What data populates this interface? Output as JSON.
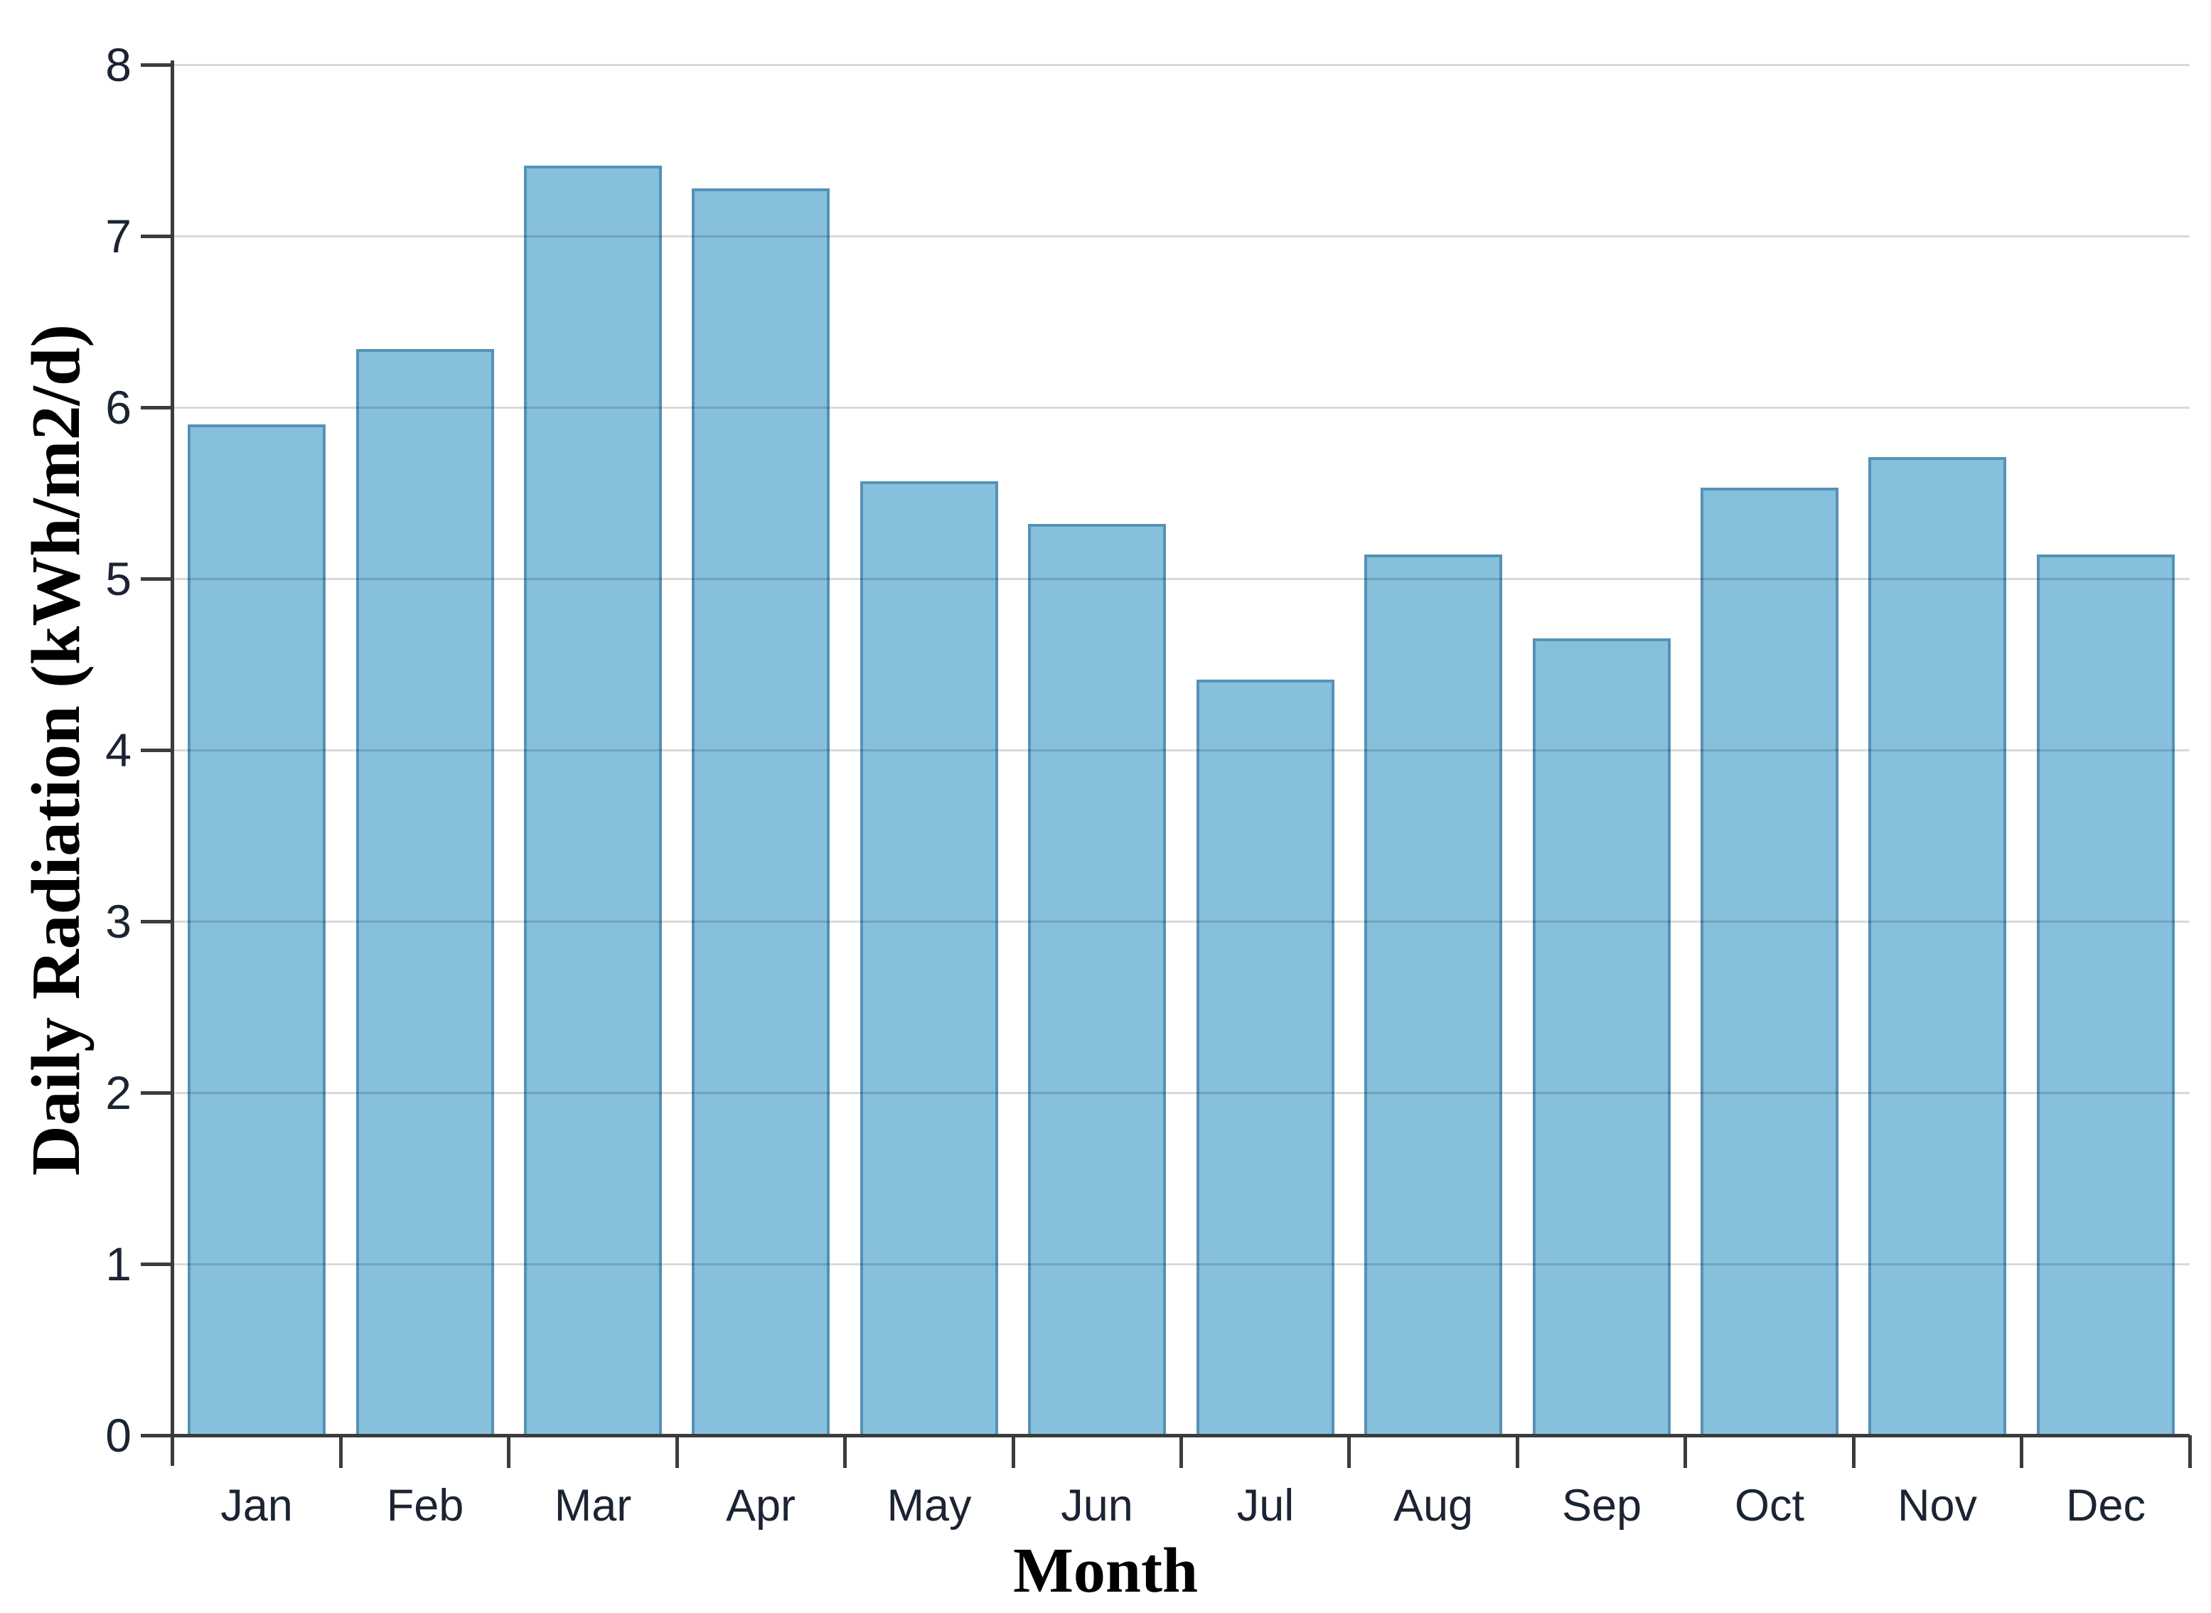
{
  "chart_data": {
    "type": "bar",
    "title": "",
    "categories": [
      "Jan",
      "Feb",
      "Mar",
      "Apr",
      "May",
      "Jun",
      "Jul",
      "Aug",
      "Sep",
      "Oct",
      "Nov",
      "Dec"
    ],
    "values": [
      5.9,
      6.34,
      7.41,
      7.28,
      5.57,
      5.32,
      4.41,
      5.14,
      4.65,
      5.53,
      5.71,
      5.14
    ],
    "xlabel": "Month",
    "ylabel": "Daily Radiation (kWh/m2/d)",
    "ylim": [
      0,
      8
    ],
    "yticks": [
      0,
      1,
      2,
      3,
      4,
      5,
      6,
      7,
      8
    ],
    "legend": "none",
    "grid": "horizontal",
    "gridlines_over_bars": true,
    "colors": {
      "bar_fill": "#87c0dc",
      "bar_border": "#5592b6",
      "axis": "#3c3c3c",
      "gridline_rgba": "rgba(0,0,0,0.15)",
      "tick_label": "#1c2433"
    }
  }
}
